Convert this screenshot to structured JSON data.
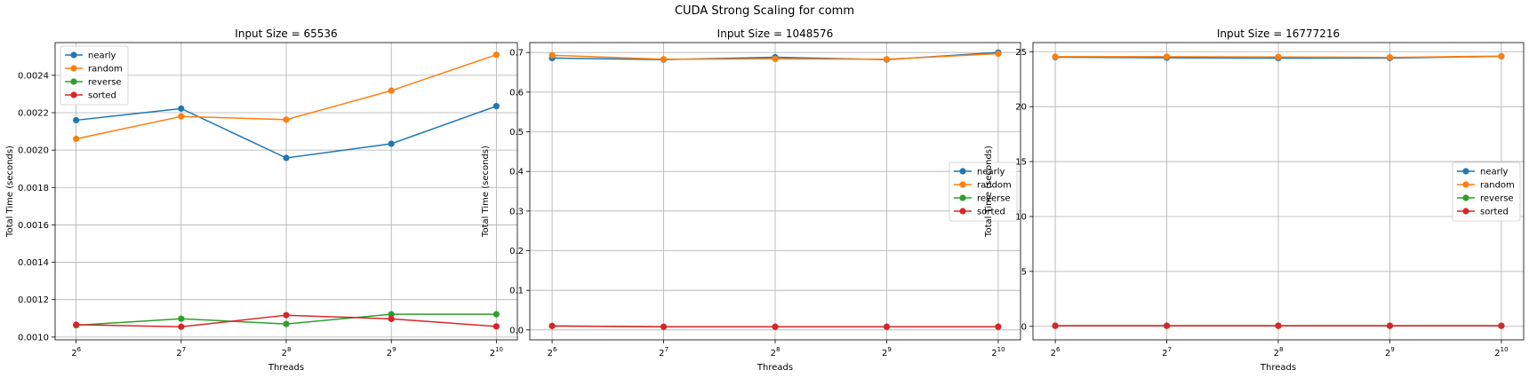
{
  "figure": {
    "title": "CUDA Strong Scaling for comm"
  },
  "colors": {
    "nearly": "#1f77b4",
    "random": "#ff7f0e",
    "reverse": "#2ca02c",
    "sorted": "#d62728",
    "grid": "#b0b0b0"
  },
  "chart_data": [
    {
      "type": "line",
      "title": "Input Size = 65536",
      "xlabel": "Threads",
      "ylabel": "Total Time (seconds)",
      "x": [
        6,
        7,
        8,
        9,
        10
      ],
      "xscale": "log2",
      "xtick_labels": [
        {
          "base": "2",
          "exp": "6"
        },
        {
          "base": "2",
          "exp": "7"
        },
        {
          "base": "2",
          "exp": "8"
        },
        {
          "base": "2",
          "exp": "9"
        },
        {
          "base": "2",
          "exp": "10"
        }
      ],
      "ylim": [
        0.000985,
        0.002575
      ],
      "yticks": [
        0.001,
        0.0012,
        0.0014,
        0.0016,
        0.0018,
        0.002,
        0.0022,
        0.0024
      ],
      "ytick_labels": [
        "0.0010",
        "0.0012",
        "0.0014",
        "0.0016",
        "0.0018",
        "0.0020",
        "0.0022",
        "0.0024"
      ],
      "grid": true,
      "legend": "upper left",
      "series": [
        {
          "name": "nearly",
          "values": [
            0.00216,
            0.002222,
            0.001958,
            0.002034,
            0.002235
          ]
        },
        {
          "name": "random",
          "values": [
            0.00206,
            0.00218,
            0.002163,
            0.002318,
            0.00251
          ]
        },
        {
          "name": "reverse",
          "values": [
            0.001063,
            0.001098,
            0.00107,
            0.001122,
            0.001122
          ]
        },
        {
          "name": "sorted",
          "values": [
            0.001066,
            0.001055,
            0.001117,
            0.001097,
            0.001057
          ]
        }
      ]
    },
    {
      "type": "line",
      "title": "Input Size = 1048576",
      "xlabel": "Threads",
      "ylabel": "Total Time (seconds)",
      "x": [
        6,
        7,
        8,
        9,
        10
      ],
      "xscale": "log2",
      "xtick_labels": [
        {
          "base": "2",
          "exp": "6"
        },
        {
          "base": "2",
          "exp": "7"
        },
        {
          "base": "2",
          "exp": "8"
        },
        {
          "base": "2",
          "exp": "9"
        },
        {
          "base": "2",
          "exp": "10"
        }
      ],
      "ylim": [
        -0.025,
        0.725
      ],
      "yticks": [
        0.0,
        0.1,
        0.2,
        0.3,
        0.4,
        0.5,
        0.6,
        0.7
      ],
      "ytick_labels": [
        "0.0",
        "0.1",
        "0.2",
        "0.3",
        "0.4",
        "0.5",
        "0.6",
        "0.7"
      ],
      "grid": true,
      "legend": "center right",
      "series": [
        {
          "name": "nearly",
          "values": [
            0.686,
            0.682,
            0.688,
            0.682,
            0.7
          ]
        },
        {
          "name": "random",
          "values": [
            0.693,
            0.683,
            0.684,
            0.683,
            0.697
          ]
        },
        {
          "name": "reverse",
          "values": [
            0.01,
            0.008,
            0.008,
            0.008,
            0.008
          ]
        },
        {
          "name": "sorted",
          "values": [
            0.01,
            0.008,
            0.008,
            0.008,
            0.008
          ]
        }
      ]
    },
    {
      "type": "line",
      "title": "Input Size = 16777216",
      "xlabel": "Threads",
      "ylabel": "Total Time (seconds)",
      "x": [
        6,
        7,
        8,
        9,
        10
      ],
      "xscale": "log2",
      "xtick_labels": [
        {
          "base": "2",
          "exp": "6"
        },
        {
          "base": "2",
          "exp": "7"
        },
        {
          "base": "2",
          "exp": "8"
        },
        {
          "base": "2",
          "exp": "9"
        },
        {
          "base": "2",
          "exp": "10"
        }
      ],
      "ylim": [
        -1.23,
        25.83
      ],
      "yticks": [
        0,
        5,
        10,
        15,
        20,
        25
      ],
      "ytick_labels": [
        "0",
        "5",
        "10",
        "15",
        "20",
        "25"
      ],
      "grid": true,
      "legend": "center right",
      "series": [
        {
          "name": "nearly",
          "values": [
            24.5,
            24.45,
            24.42,
            24.42,
            24.58
          ]
        },
        {
          "name": "random",
          "values": [
            24.55,
            24.55,
            24.52,
            24.48,
            24.6
          ]
        },
        {
          "name": "reverse",
          "values": [
            0.05,
            0.05,
            0.05,
            0.05,
            0.05
          ]
        },
        {
          "name": "sorted",
          "values": [
            0.05,
            0.05,
            0.05,
            0.05,
            0.05
          ]
        }
      ]
    }
  ]
}
